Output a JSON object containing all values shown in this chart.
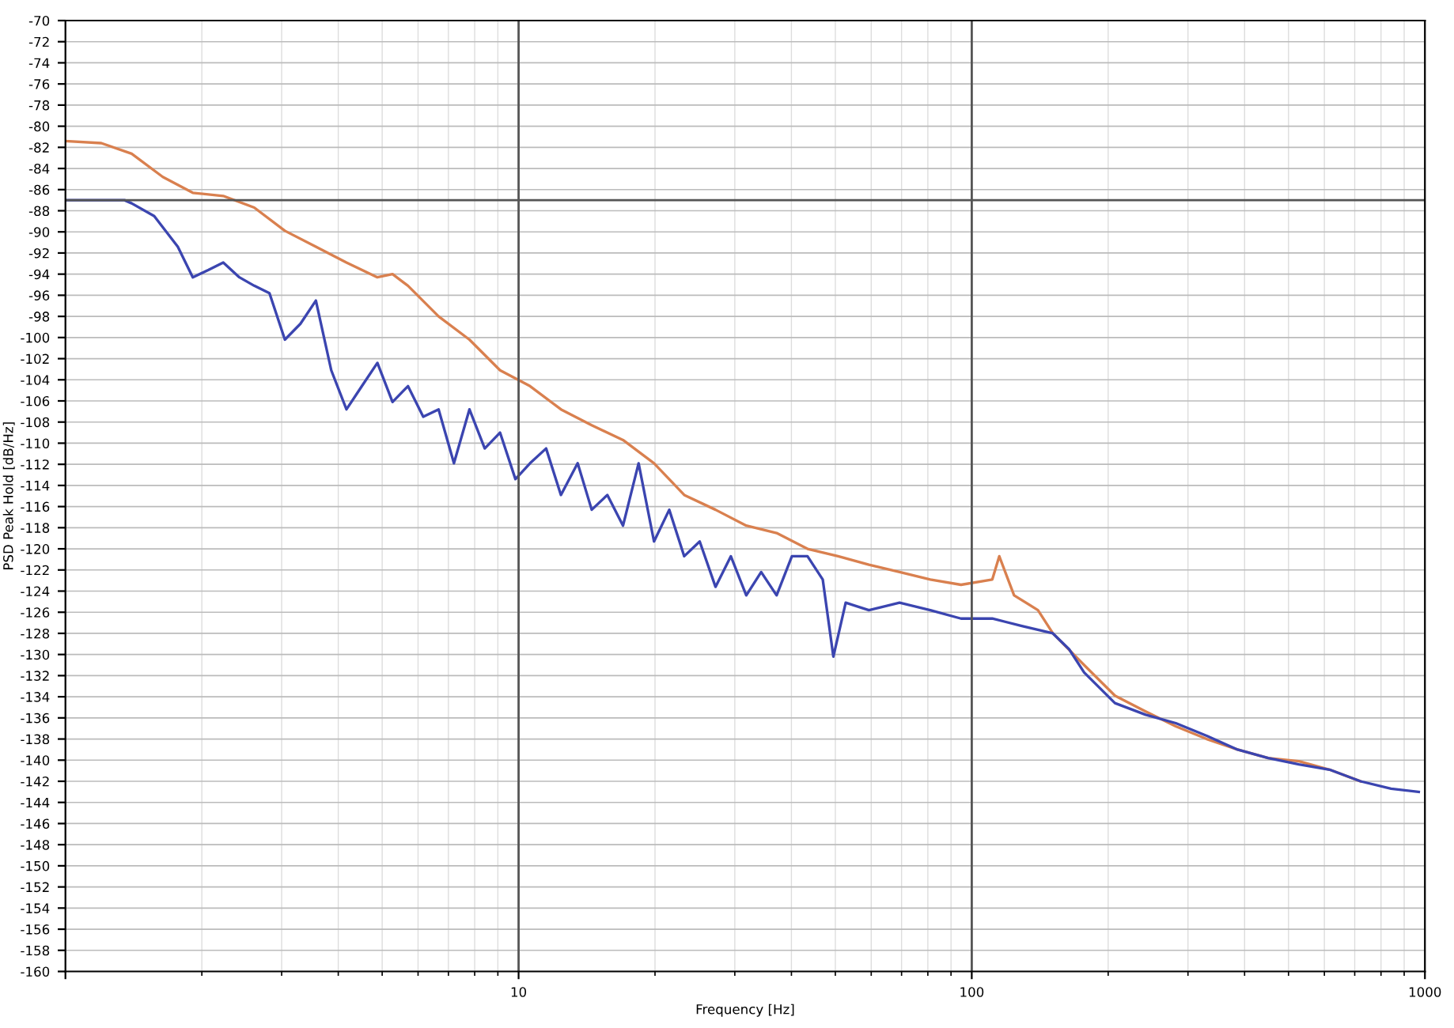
{
  "chart_data": {
    "type": "line",
    "xlabel": "Frequency [Hz]",
    "ylabel": "PSD Peak Hold [dB/Hz]",
    "log": "x",
    "xlim": [
      1,
      1000
    ],
    "xticks": [
      {
        "value": 1,
        "label": null
      },
      10,
      100,
      1000
    ],
    "ylim": [
      -160,
      -70
    ],
    "yticks": [
      -160,
      -158,
      -156,
      -154,
      -152,
      -150,
      -148,
      -146,
      -144,
      -142,
      -140,
      -138,
      -136,
      -134,
      -132,
      -130,
      -128,
      -126,
      -124,
      -122,
      -120,
      -118,
      -116,
      -114,
      -112,
      -110,
      -108,
      -106,
      -104,
      -102,
      -100,
      -98,
      -96,
      -94,
      -92,
      -90,
      -88,
      -86,
      -84,
      -82,
      -80,
      -78,
      -76,
      -74,
      -72,
      -70
    ],
    "grid": true,
    "line_style": "solid",
    "marker": "none",
    "ref_lines": [
      {
        "axis": "y",
        "value": -87.0,
        "color": "#555555"
      },
      {
        "axis": "x",
        "value": 10,
        "color": "#555555"
      },
      {
        "axis": "x",
        "value": 100,
        "color": "#555555"
      }
    ],
    "series": [
      {
        "color": "#d9804f",
        "x": [
          1.0,
          1.2,
          1.4,
          1.64,
          1.91,
          2.23,
          2.61,
          3.05,
          3.57,
          4.17,
          4.88,
          5.27,
          5.7,
          6.66,
          7.79,
          9.1,
          10.6,
          12.4,
          14.5,
          17.0,
          19.9,
          23.2,
          27.2,
          31.8,
          37.1,
          43.4,
          50.7,
          59.3,
          69.3,
          81,
          94.7,
          111,
          115,
          124,
          140,
          151,
          177,
          207,
          242,
          282,
          330,
          386,
          451,
          527,
          616,
          721
        ],
        "values": [
          -81.4,
          -81.6,
          -82.6,
          -84.8,
          -86.3,
          -86.6,
          -87.7,
          -89.9,
          -91.4,
          -92.9,
          -94.3,
          -94.0,
          -95.1,
          -98.0,
          -100.2,
          -103.1,
          -104.6,
          -106.8,
          -108.3,
          -109.7,
          -111.9,
          -114.9,
          -116.3,
          -117.8,
          -118.5,
          -120.0,
          -120.7,
          -121.5,
          -122.2,
          -122.9,
          -123.4,
          -122.9,
          -120.7,
          -124.4,
          -125.8,
          -128.0,
          -131.0,
          -133.9,
          -135.4,
          -136.8,
          -138.0,
          -139.0,
          -139.8,
          -140.1,
          -140.9,
          -142.0
        ]
      },
      {
        "color": "#3b45b0",
        "x": [
          1.0,
          1.35,
          1.4,
          1.57,
          1.77,
          1.91,
          2.07,
          2.23,
          2.42,
          2.61,
          2.82,
          3.05,
          3.3,
          3.57,
          3.86,
          4.17,
          4.51,
          4.88,
          5.27,
          5.7,
          6.16,
          6.66,
          7.2,
          7.79,
          8.42,
          9.1,
          9.84,
          10.6,
          11.5,
          12.4,
          13.5,
          14.5,
          15.7,
          17.0,
          18.4,
          19.9,
          21.5,
          23.2,
          25.1,
          27.2,
          29.4,
          31.8,
          34.3,
          37.1,
          40.1,
          43.4,
          46.9,
          49.5,
          52.7,
          59.3,
          69.3,
          81,
          94.7,
          111,
          129,
          151,
          164,
          177,
          207,
          242,
          282,
          330,
          386,
          451,
          527,
          616,
          721,
          842,
          969
        ],
        "values": [
          -87.0,
          -87.0,
          -87.3,
          -88.5,
          -91.4,
          -94.3,
          -93.6,
          -92.9,
          -94.3,
          -95.1,
          -95.8,
          -100.2,
          -98.7,
          -96.5,
          -103.1,
          -106.8,
          -104.6,
          -102.4,
          -106.1,
          -104.6,
          -107.5,
          -106.8,
          -111.9,
          -106.8,
          -110.5,
          -109.0,
          -113.4,
          -111.9,
          -110.5,
          -114.9,
          -111.9,
          -116.3,
          -114.9,
          -117.8,
          -111.9,
          -119.3,
          -116.3,
          -120.7,
          -119.3,
          -123.6,
          -120.7,
          -124.4,
          -122.2,
          -124.4,
          -120.7,
          -120.7,
          -122.9,
          -130.2,
          -125.1,
          -125.8,
          -125.1,
          -125.8,
          -126.6,
          -126.6,
          -127.3,
          -128.0,
          -129.5,
          -131.7,
          -134.6,
          -135.7,
          -136.5,
          -137.7,
          -139.0,
          -139.8,
          -140.4,
          -140.9,
          -142.0,
          -142.7,
          -143.0
        ]
      }
    ]
  }
}
